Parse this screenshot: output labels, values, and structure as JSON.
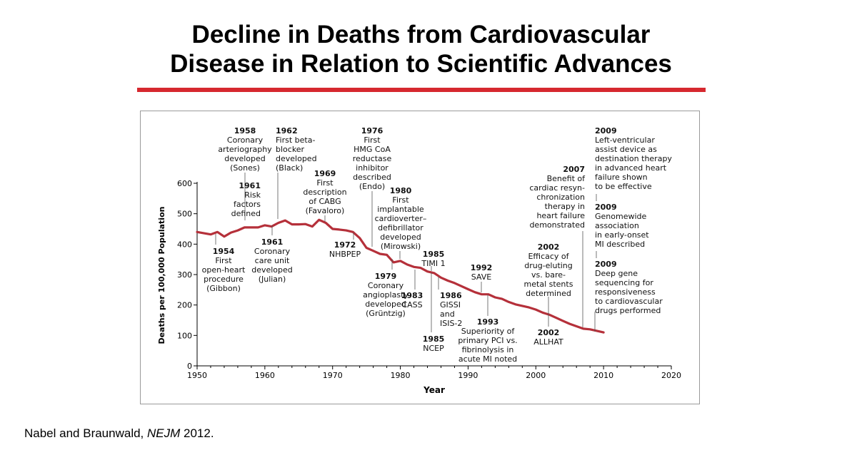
{
  "slide": {
    "title_line1": "Decline in Deaths from Cardiovascular",
    "title_line2": "Disease in Relation to Scientific Advances",
    "citation_authors": "Nabel and Braunwald, ",
    "citation_journal": "NEJM",
    "citation_year": " 2012.",
    "rule_color": "#d6282f"
  },
  "chart_data": {
    "type": "line",
    "title": "",
    "xlabel": "Year",
    "ylabel": "Deaths per 100,000 Population",
    "xlim": [
      1950,
      2020
    ],
    "ylim": [
      0,
      600
    ],
    "x_ticks": [
      1950,
      1960,
      1970,
      1980,
      1990,
      2000,
      2010,
      2020
    ],
    "y_ticks": [
      0,
      100,
      200,
      300,
      400,
      500,
      600
    ],
    "grid": false,
    "line_color": "#b5303a",
    "series": [
      {
        "x": [
          1950,
          1952,
          1953,
          1954,
          1955,
          1956,
          1957,
          1958,
          1959,
          1960,
          1961,
          1962,
          1963,
          1964,
          1965,
          1966,
          1967,
          1968,
          1969,
          1970,
          1971,
          1972,
          1973,
          1974,
          1975,
          1976,
          1977,
          1978,
          1979,
          1980,
          1981,
          1982,
          1983,
          1984,
          1985,
          1986,
          1987,
          1988,
          1989,
          1990,
          1991,
          1992,
          1993,
          1994,
          1995,
          1996,
          1997,
          1998,
          1999,
          2000,
          2001,
          2002,
          2003,
          2004,
          2005,
          2006,
          2007,
          2008,
          2009,
          2010
        ],
        "y": [
          440,
          432,
          440,
          425,
          438,
          445,
          455,
          455,
          455,
          462,
          458,
          470,
          478,
          465,
          465,
          466,
          458,
          480,
          470,
          450,
          448,
          445,
          440,
          420,
          388,
          378,
          368,
          365,
          340,
          345,
          333,
          325,
          322,
          310,
          305,
          290,
          280,
          272,
          262,
          252,
          242,
          235,
          235,
          225,
          220,
          210,
          202,
          197,
          192,
          185,
          175,
          168,
          158,
          148,
          138,
          130,
          122,
          120,
          115,
          110
        ]
      }
    ],
    "annotations": [
      {
        "id": "a1954",
        "lines": [
          "1954",
          "First",
          "open-heart",
          "procedure",
          "(Gibbon)"
        ]
      },
      {
        "id": "a1958",
        "lines": [
          "1958",
          "Coronary",
          "arteriography",
          "developed",
          "(Sones)"
        ]
      },
      {
        "id": "a1961r",
        "lines": [
          "1961",
          "Risk",
          "factors",
          "defined"
        ]
      },
      {
        "id": "a1961c",
        "lines": [
          "1961",
          "Coronary",
          "care unit",
          "developed",
          "(Julian)"
        ]
      },
      {
        "id": "a1962",
        "lines": [
          "1962",
          "First beta-",
          "blocker",
          "developed",
          "(Black)"
        ]
      },
      {
        "id": "a1969",
        "lines": [
          "1969",
          "First",
          "description",
          "of CABG",
          "(Favaloro)"
        ]
      },
      {
        "id": "a1972",
        "lines": [
          "1972",
          "NHBPEP"
        ]
      },
      {
        "id": "a1976",
        "lines": [
          "1976",
          "First",
          "HMG CoA",
          "reductase",
          "inhibitor",
          "described",
          "(Endo)"
        ]
      },
      {
        "id": "a1979",
        "lines": [
          "1979",
          "Coronary",
          "angioplasty",
          "developed",
          "(Grüntzig)"
        ]
      },
      {
        "id": "a1980",
        "lines": [
          "1980",
          "First",
          "implantable",
          "cardioverter–",
          "defibrillator",
          "developed",
          "(Mirowski)"
        ]
      },
      {
        "id": "a1983",
        "lines": [
          "1983",
          "CASS"
        ]
      },
      {
        "id": "a1985t",
        "lines": [
          "1985",
          "TIMI 1"
        ]
      },
      {
        "id": "a1985n",
        "lines": [
          "1985",
          "NCEP"
        ]
      },
      {
        "id": "a1986",
        "lines": [
          "1986",
          "GISSI",
          "and",
          "ISIS-2"
        ]
      },
      {
        "id": "a1992",
        "lines": [
          "1992",
          "SAVE"
        ]
      },
      {
        "id": "a1993",
        "lines": [
          "1993",
          "Superiority of",
          "primary PCI vs.",
          "fibrinolysis in",
          "acute MI noted"
        ]
      },
      {
        "id": "a2002e",
        "lines": [
          "2002",
          "Efficacy of",
          "drug-eluting",
          "vs. bare-",
          "metal stents",
          "determined"
        ]
      },
      {
        "id": "a2002a",
        "lines": [
          "2002",
          "ALLHAT"
        ]
      },
      {
        "id": "a2007",
        "lines": [
          "2007",
          "Benefit of",
          "cardiac resyn-",
          "chronization",
          "therapy in",
          "heart failure",
          "demonstrated"
        ]
      },
      {
        "id": "a2009l",
        "lines": [
          "2009",
          "Left-ventricular",
          "assist device as",
          "destination therapy",
          "in advanced heart",
          "failure shown",
          "to be effective"
        ]
      },
      {
        "id": "a2009g",
        "lines": [
          "2009",
          "Genomewide",
          "association",
          "in early-onset",
          "MI described"
        ]
      },
      {
        "id": "a2009d",
        "lines": [
          "2009",
          "Deep gene",
          "sequencing for",
          "responsiveness",
          "to cardiovascular",
          "drugs performed"
        ]
      }
    ]
  }
}
